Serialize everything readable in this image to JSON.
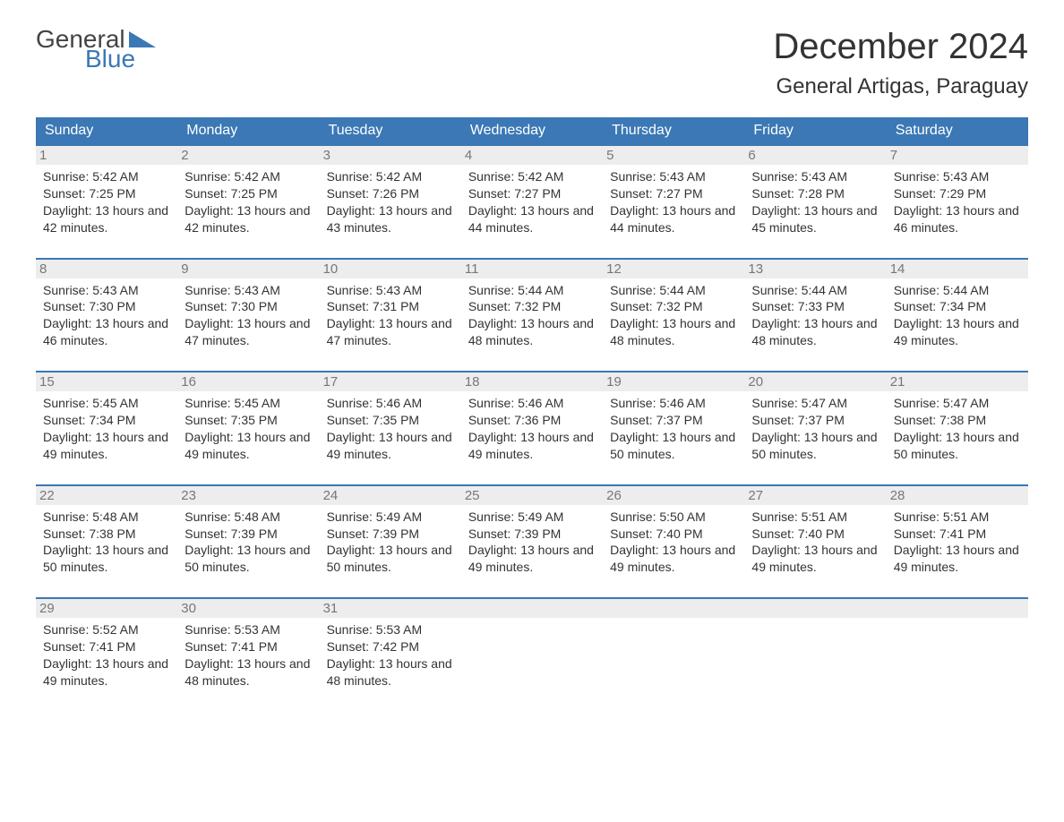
{
  "logo": {
    "word1": "General",
    "word2": "Blue"
  },
  "title": "December 2024",
  "location": "General Artigas, Paraguay",
  "colors": {
    "header_bg": "#3b78b5",
    "header_text": "#ffffff",
    "daynum_bg": "#ededed",
    "daynum_text": "#777777",
    "body_text": "#333333",
    "rule": "#3b78b5"
  },
  "weekdays": [
    "Sunday",
    "Monday",
    "Tuesday",
    "Wednesday",
    "Thursday",
    "Friday",
    "Saturday"
  ],
  "labels": {
    "sunrise": "Sunrise:",
    "sunset": "Sunset:",
    "daylight": "Daylight:"
  },
  "days": [
    {
      "n": "1",
      "sr": "5:42 AM",
      "ss": "7:25 PM",
      "dl": "13 hours and 42 minutes."
    },
    {
      "n": "2",
      "sr": "5:42 AM",
      "ss": "7:25 PM",
      "dl": "13 hours and 42 minutes."
    },
    {
      "n": "3",
      "sr": "5:42 AM",
      "ss": "7:26 PM",
      "dl": "13 hours and 43 minutes."
    },
    {
      "n": "4",
      "sr": "5:42 AM",
      "ss": "7:27 PM",
      "dl": "13 hours and 44 minutes."
    },
    {
      "n": "5",
      "sr": "5:43 AM",
      "ss": "7:27 PM",
      "dl": "13 hours and 44 minutes."
    },
    {
      "n": "6",
      "sr": "5:43 AM",
      "ss": "7:28 PM",
      "dl": "13 hours and 45 minutes."
    },
    {
      "n": "7",
      "sr": "5:43 AM",
      "ss": "7:29 PM",
      "dl": "13 hours and 46 minutes."
    },
    {
      "n": "8",
      "sr": "5:43 AM",
      "ss": "7:30 PM",
      "dl": "13 hours and 46 minutes."
    },
    {
      "n": "9",
      "sr": "5:43 AM",
      "ss": "7:30 PM",
      "dl": "13 hours and 47 minutes."
    },
    {
      "n": "10",
      "sr": "5:43 AM",
      "ss": "7:31 PM",
      "dl": "13 hours and 47 minutes."
    },
    {
      "n": "11",
      "sr": "5:44 AM",
      "ss": "7:32 PM",
      "dl": "13 hours and 48 minutes."
    },
    {
      "n": "12",
      "sr": "5:44 AM",
      "ss": "7:32 PM",
      "dl": "13 hours and 48 minutes."
    },
    {
      "n": "13",
      "sr": "5:44 AM",
      "ss": "7:33 PM",
      "dl": "13 hours and 48 minutes."
    },
    {
      "n": "14",
      "sr": "5:44 AM",
      "ss": "7:34 PM",
      "dl": "13 hours and 49 minutes."
    },
    {
      "n": "15",
      "sr": "5:45 AM",
      "ss": "7:34 PM",
      "dl": "13 hours and 49 minutes."
    },
    {
      "n": "16",
      "sr": "5:45 AM",
      "ss": "7:35 PM",
      "dl": "13 hours and 49 minutes."
    },
    {
      "n": "17",
      "sr": "5:46 AM",
      "ss": "7:35 PM",
      "dl": "13 hours and 49 minutes."
    },
    {
      "n": "18",
      "sr": "5:46 AM",
      "ss": "7:36 PM",
      "dl": "13 hours and 49 minutes."
    },
    {
      "n": "19",
      "sr": "5:46 AM",
      "ss": "7:37 PM",
      "dl": "13 hours and 50 minutes."
    },
    {
      "n": "20",
      "sr": "5:47 AM",
      "ss": "7:37 PM",
      "dl": "13 hours and 50 minutes."
    },
    {
      "n": "21",
      "sr": "5:47 AM",
      "ss": "7:38 PM",
      "dl": "13 hours and 50 minutes."
    },
    {
      "n": "22",
      "sr": "5:48 AM",
      "ss": "7:38 PM",
      "dl": "13 hours and 50 minutes."
    },
    {
      "n": "23",
      "sr": "5:48 AM",
      "ss": "7:39 PM",
      "dl": "13 hours and 50 minutes."
    },
    {
      "n": "24",
      "sr": "5:49 AM",
      "ss": "7:39 PM",
      "dl": "13 hours and 50 minutes."
    },
    {
      "n": "25",
      "sr": "5:49 AM",
      "ss": "7:39 PM",
      "dl": "13 hours and 49 minutes."
    },
    {
      "n": "26",
      "sr": "5:50 AM",
      "ss": "7:40 PM",
      "dl": "13 hours and 49 minutes."
    },
    {
      "n": "27",
      "sr": "5:51 AM",
      "ss": "7:40 PM",
      "dl": "13 hours and 49 minutes."
    },
    {
      "n": "28",
      "sr": "5:51 AM",
      "ss": "7:41 PM",
      "dl": "13 hours and 49 minutes."
    },
    {
      "n": "29",
      "sr": "5:52 AM",
      "ss": "7:41 PM",
      "dl": "13 hours and 49 minutes."
    },
    {
      "n": "30",
      "sr": "5:53 AM",
      "ss": "7:41 PM",
      "dl": "13 hours and 48 minutes."
    },
    {
      "n": "31",
      "sr": "5:53 AM",
      "ss": "7:42 PM",
      "dl": "13 hours and 48 minutes."
    }
  ],
  "grid": {
    "weeks": 5,
    "cols": 7,
    "start_offset": 0,
    "total_days": 31
  }
}
